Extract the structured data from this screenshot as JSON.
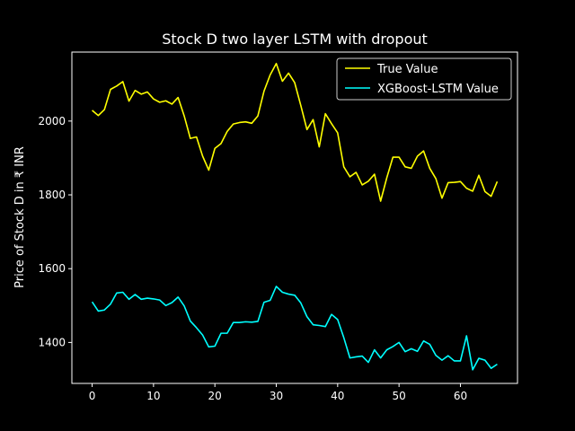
{
  "chart_data": {
    "type": "line",
    "title": "Stock D two layer LSTM with dropout",
    "xlabel": "",
    "ylabel": "Price of Stock D in ₹ INR",
    "xlim": [
      -3.3,
      69.3
    ],
    "ylim": [
      1289,
      2187
    ],
    "xticks": [
      0,
      10,
      20,
      30,
      40,
      50,
      60
    ],
    "yticks": [
      1400,
      1600,
      1800,
      2000
    ],
    "grid": false,
    "legend_position": "top-right",
    "background": "#000000",
    "foreground": "#ffffff",
    "x": [
      0,
      1,
      2,
      3,
      4,
      5,
      6,
      7,
      8,
      9,
      10,
      11,
      12,
      13,
      14,
      15,
      16,
      17,
      18,
      19,
      20,
      21,
      22,
      23,
      24,
      25,
      26,
      27,
      28,
      29,
      30,
      31,
      32,
      33,
      34,
      35,
      36,
      37,
      38,
      39,
      40,
      41,
      42,
      43,
      44,
      45,
      46,
      47,
      48,
      49,
      50,
      51,
      52,
      53,
      54,
      55,
      56,
      57,
      58,
      59,
      60,
      61,
      62,
      63,
      64,
      65,
      66
    ],
    "series": [
      {
        "name": "True Value",
        "color": "#ffff00",
        "values": [
          2029,
          2015,
          2031,
          2086,
          2095,
          2107,
          2054,
          2083,
          2073,
          2079,
          2060,
          2051,
          2055,
          2046,
          2064,
          2014,
          1953,
          1957,
          1905,
          1867,
          1926,
          1939,
          1972,
          1992,
          1996,
          1998,
          1994,
          2014,
          2081,
          2125,
          2156,
          2108,
          2130,
          2104,
          2042,
          1977,
          2004,
          1930,
          2020,
          1993,
          1968,
          1876,
          1849,
          1861,
          1827,
          1837,
          1856,
          1783,
          1846,
          1902,
          1902,
          1876,
          1872,
          1905,
          1919,
          1872,
          1844,
          1791,
          1833,
          1834,
          1836,
          1818,
          1810,
          1853,
          1809,
          1796,
          1836
        ]
      },
      {
        "name": "XGBoost-LSTM Value",
        "color": "#00ffff",
        "values": [
          1510,
          1485,
          1488,
          1504,
          1534,
          1536,
          1517,
          1530,
          1517,
          1520,
          1518,
          1515,
          1500,
          1508,
          1523,
          1499,
          1458,
          1440,
          1420,
          1388,
          1390,
          1425,
          1425,
          1454,
          1454,
          1456,
          1455,
          1457,
          1509,
          1514,
          1552,
          1536,
          1531,
          1528,
          1507,
          1470,
          1448,
          1446,
          1443,
          1476,
          1462,
          1413,
          1358,
          1361,
          1363,
          1346,
          1380,
          1358,
          1380,
          1389,
          1400,
          1375,
          1383,
          1376,
          1404,
          1395,
          1365,
          1352,
          1364,
          1350,
          1350,
          1418,
          1326,
          1357,
          1352,
          1330,
          1341
        ]
      }
    ]
  }
}
